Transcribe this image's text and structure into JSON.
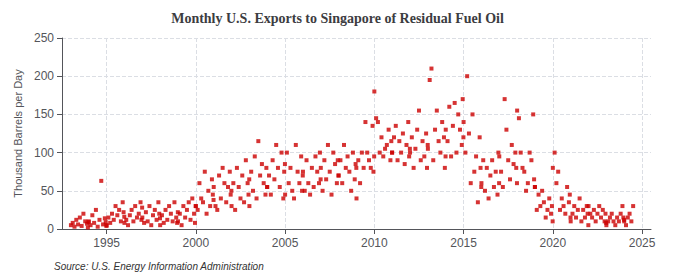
{
  "chart_data": {
    "type": "scatter",
    "title": "Monthly U.S. Exports to Singapore of Residual Fuel Oil",
    "ylabel": "Thousand Barrels per Day",
    "annotation": "Source: U.S. Energy Information Administration",
    "color": "#cc0000",
    "marker": "square",
    "grid": true,
    "xlim": [
      1992.5,
      2025.5
    ],
    "ylim": [
      0,
      250
    ],
    "xticks": [
      1995,
      2000,
      2005,
      2010,
      2015,
      2020,
      2025
    ],
    "yticks": [
      0,
      50,
      100,
      150,
      200,
      250
    ],
    "x": [
      1993.0,
      1993.1,
      1993.2,
      1993.3,
      1993.4,
      1993.5,
      1993.6,
      1993.7,
      1993.8,
      1993.9,
      1993.95,
      1993.99,
      1994.0,
      1994.1,
      1994.2,
      1994.3,
      1994.4,
      1994.5,
      1994.6,
      1994.7,
      1994.8,
      1994.9,
      1994.95,
      1994.99,
      1995.0,
      1995.1,
      1995.2,
      1995.3,
      1995.4,
      1995.5,
      1995.6,
      1995.7,
      1995.8,
      1995.9,
      1995.95,
      1995.99,
      1996.0,
      1996.1,
      1996.2,
      1996.3,
      1996.4,
      1996.5,
      1996.6,
      1996.7,
      1996.8,
      1996.9,
      1996.95,
      1996.99,
      1997.0,
      1997.1,
      1997.2,
      1997.3,
      1997.4,
      1997.5,
      1997.6,
      1997.7,
      1997.8,
      1997.9,
      1997.95,
      1997.99,
      1998.0,
      1998.1,
      1998.2,
      1998.3,
      1998.4,
      1998.5,
      1998.6,
      1998.7,
      1998.8,
      1998.9,
      1998.95,
      1998.99,
      1999.0,
      1999.1,
      1999.2,
      1999.3,
      1999.4,
      1999.5,
      1999.6,
      1999.7,
      1999.8,
      1999.9,
      1999.95,
      1999.99,
      2000.0,
      2000.1,
      2000.2,
      2000.3,
      2000.4,
      2000.5,
      2000.6,
      2000.7,
      2000.8,
      2000.9,
      2000.95,
      2000.99,
      2001.0,
      2001.1,
      2001.2,
      2001.3,
      2001.4,
      2001.5,
      2001.6,
      2001.7,
      2001.8,
      2001.9,
      2001.95,
      2001.99,
      2002.0,
      2002.1,
      2002.2,
      2002.3,
      2002.4,
      2002.5,
      2002.6,
      2002.7,
      2002.8,
      2002.9,
      2002.95,
      2002.99,
      2003.0,
      2003.1,
      2003.2,
      2003.3,
      2003.4,
      2003.5,
      2003.6,
      2003.7,
      2003.8,
      2003.9,
      2003.95,
      2003.99,
      2004.0,
      2004.1,
      2004.2,
      2004.3,
      2004.4,
      2004.5,
      2004.6,
      2004.7,
      2004.8,
      2004.9,
      2004.95,
      2004.99,
      2005.0,
      2005.1,
      2005.2,
      2005.3,
      2005.4,
      2005.5,
      2005.6,
      2005.7,
      2005.8,
      2005.9,
      2005.95,
      2005.99,
      2006.0,
      2006.1,
      2006.2,
      2006.3,
      2006.4,
      2006.5,
      2006.6,
      2006.7,
      2006.8,
      2006.9,
      2006.95,
      2006.99,
      2007.0,
      2007.1,
      2007.2,
      2007.3,
      2007.4,
      2007.5,
      2007.6,
      2007.7,
      2007.8,
      2007.9,
      2007.95,
      2007.99,
      2008.0,
      2008.1,
      2008.2,
      2008.3,
      2008.4,
      2008.5,
      2008.6,
      2008.7,
      2008.8,
      2008.9,
      2008.95,
      2008.99,
      2009.0,
      2009.1,
      2009.2,
      2009.3,
      2009.4,
      2009.5,
      2009.6,
      2009.7,
      2009.8,
      2009.9,
      2009.95,
      2009.99,
      2010.0,
      2010.1,
      2010.2,
      2010.3,
      2010.4,
      2010.5,
      2010.6,
      2010.7,
      2010.8,
      2010.9,
      2010.95,
      2010.99,
      2011.0,
      2011.1,
      2011.2,
      2011.3,
      2011.4,
      2011.5,
      2011.6,
      2011.7,
      2011.8,
      2011.9,
      2011.95,
      2011.99,
      2012.0,
      2012.1,
      2012.2,
      2012.3,
      2012.4,
      2012.5,
      2012.6,
      2012.7,
      2012.8,
      2012.9,
      2012.95,
      2012.99,
      2013.0,
      2013.1,
      2013.2,
      2013.3,
      2013.4,
      2013.5,
      2013.6,
      2013.7,
      2013.8,
      2013.9,
      2013.95,
      2013.99,
      2014.0,
      2014.1,
      2014.2,
      2014.3,
      2014.4,
      2014.5,
      2014.6,
      2014.7,
      2014.8,
      2014.9,
      2014.95,
      2014.99,
      2015.0,
      2015.1,
      2015.2,
      2015.3,
      2015.4,
      2015.5,
      2015.6,
      2015.7,
      2015.8,
      2015.9,
      2015.95,
      2015.99,
      2016.0,
      2016.1,
      2016.2,
      2016.3,
      2016.4,
      2016.5,
      2016.6,
      2016.7,
      2016.8,
      2016.9,
      2016.95,
      2016.99,
      2017.0,
      2017.1,
      2017.2,
      2017.3,
      2017.4,
      2017.5,
      2017.6,
      2017.7,
      2017.8,
      2017.9,
      2017.95,
      2017.99,
      2018.0,
      2018.1,
      2018.2,
      2018.3,
      2018.4,
      2018.5,
      2018.6,
      2018.7,
      2018.8,
      2018.9,
      2018.95,
      2018.99,
      2019.0,
      2019.1,
      2019.2,
      2019.3,
      2019.4,
      2019.5,
      2019.6,
      2019.7,
      2019.8,
      2019.9,
      2019.95,
      2019.99,
      2020.0,
      2020.1,
      2020.2,
      2020.3,
      2020.4,
      2020.5,
      2020.6,
      2020.7,
      2020.8,
      2020.9,
      2020.95,
      2020.99,
      2021.0,
      2021.1,
      2021.2,
      2021.3,
      2021.4,
      2021.5,
      2021.6,
      2021.7,
      2021.8,
      2021.9,
      2021.95,
      2021.99,
      2022.0,
      2022.1,
      2022.2,
      2022.3,
      2022.4,
      2022.5,
      2022.6,
      2022.7,
      2022.8,
      2022.9,
      2022.95,
      2022.99,
      2023.0,
      2023.1,
      2023.2,
      2023.3,
      2023.4,
      2023.5,
      2023.6,
      2023.7,
      2023.8,
      2023.9,
      2023.95,
      2023.99,
      2024.0,
      2024.1,
      2024.2,
      2024.3,
      2024.4,
      2024.5
    ],
    "values": [
      5,
      8,
      3,
      12,
      6,
      15,
      4,
      20,
      10,
      7,
      2,
      9,
      10,
      5,
      18,
      8,
      25,
      3,
      12,
      63,
      6,
      14,
      9,
      4,
      5,
      15,
      8,
      20,
      12,
      30,
      18,
      25,
      10,
      35,
      22,
      16,
      8,
      12,
      5,
      18,
      25,
      10,
      30,
      15,
      20,
      35,
      12,
      28,
      15,
      8,
      22,
      10,
      30,
      5,
      18,
      25,
      12,
      35,
      20,
      14,
      5,
      18,
      8,
      25,
      12,
      30,
      20,
      10,
      35,
      15,
      8,
      22,
      10,
      20,
      5,
      30,
      15,
      25,
      35,
      12,
      40,
      20,
      8,
      30,
      30,
      25,
      60,
      40,
      35,
      75,
      20,
      50,
      30,
      65,
      45,
      38,
      55,
      30,
      25,
      70,
      40,
      80,
      60,
      35,
      55,
      75,
      45,
      50,
      30,
      60,
      25,
      80,
      55,
      40,
      70,
      35,
      90,
      60,
      45,
      65,
      30,
      75,
      50,
      95,
      40,
      115,
      70,
      85,
      60,
      45,
      80,
      55,
      55,
      70,
      45,
      90,
      65,
      110,
      80,
      55,
      100,
      40,
      75,
      85,
      45,
      100,
      60,
      80,
      50,
      40,
      110,
      75,
      60,
      95,
      50,
      70,
      75,
      50,
      90,
      60,
      45,
      80,
      55,
      95,
      75,
      60,
      100,
      65,
      80,
      50,
      90,
      65,
      110,
      75,
      45,
      100,
      85,
      60,
      90,
      70,
      70,
      90,
      60,
      110,
      80,
      95,
      75,
      50,
      100,
      65,
      85,
      80,
      40,
      90,
      60,
      100,
      80,
      140,
      100,
      90,
      80,
      135,
      75,
      95,
      180,
      145,
      140,
      100,
      120,
      95,
      105,
      110,
      130,
      90,
      115,
      100,
      100,
      120,
      135,
      90,
      115,
      100,
      125,
      85,
      110,
      140,
      95,
      105,
      100,
      120,
      80,
      105,
      130,
      155,
      90,
      115,
      95,
      125,
      80,
      110,
      105,
      195,
      210,
      90,
      130,
      155,
      115,
      100,
      140,
      120,
      80,
      95,
      130,
      115,
      160,
      95,
      135,
      165,
      100,
      150,
      130,
      110,
      170,
      120,
      140,
      100,
      200,
      125,
      60,
      150,
      75,
      95,
      35,
      120,
      80,
      55,
      60,
      90,
      50,
      80,
      40,
      70,
      90,
      55,
      75,
      45,
      100,
      60,
      95,
      75,
      55,
      170,
      130,
      90,
      65,
      110,
      85,
      100,
      80,
      60,
      155,
      145,
      100,
      80,
      75,
      50,
      60,
      100,
      90,
      150,
      65,
      55,
      55,
      25,
      45,
      30,
      50,
      35,
      15,
      25,
      40,
      20,
      30,
      10,
      80,
      100,
      60,
      75,
      25,
      40,
      30,
      20,
      55,
      35,
      45,
      15,
      10,
      20,
      30,
      15,
      25,
      40,
      10,
      25,
      15,
      30,
      20,
      5,
      30,
      20,
      15,
      25,
      10,
      20,
      30,
      15,
      25,
      10,
      20,
      8,
      5,
      10,
      15,
      20,
      10,
      5,
      15,
      10,
      20,
      30,
      15,
      12,
      10,
      5,
      15,
      20,
      10,
      30
    ]
  }
}
